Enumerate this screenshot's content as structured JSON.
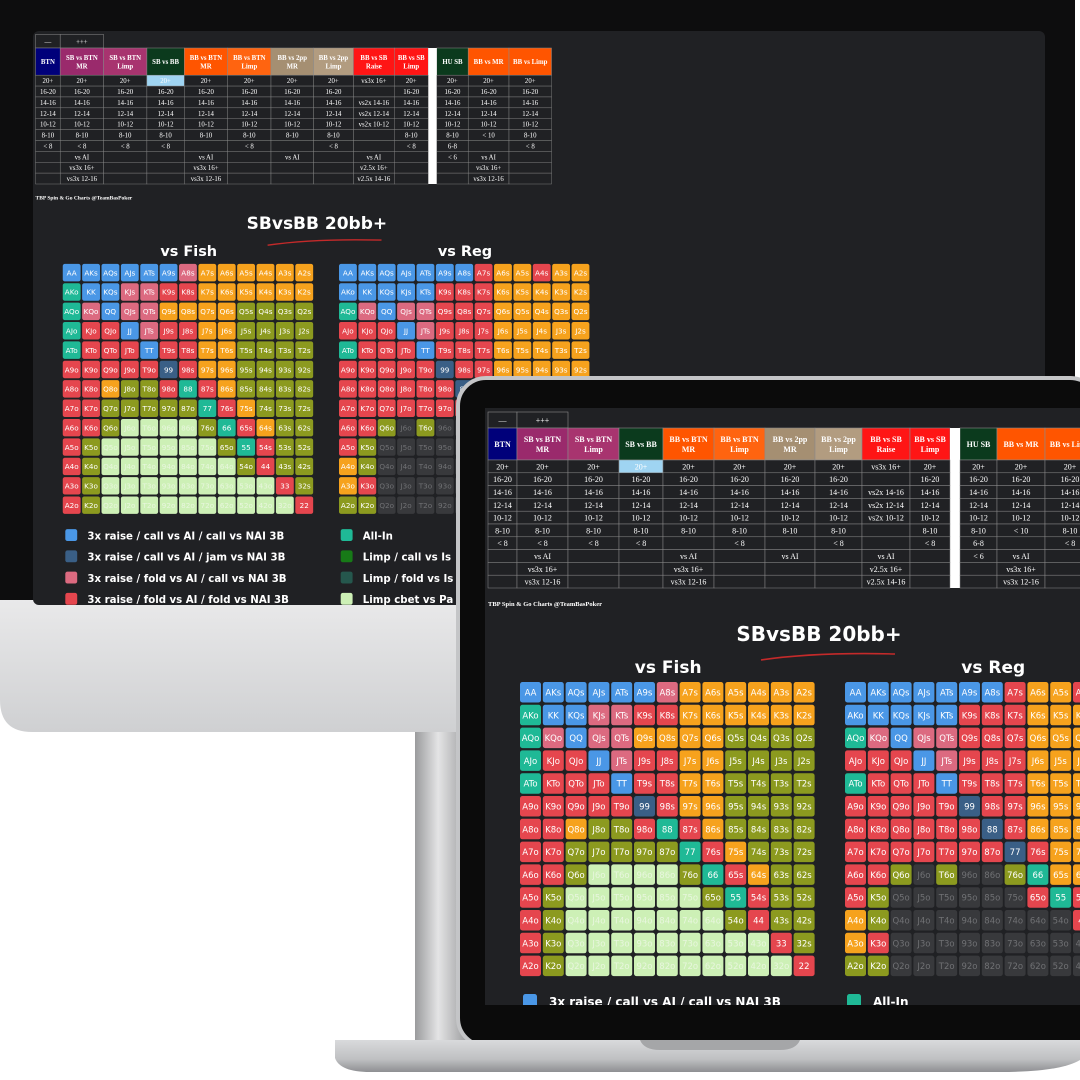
{
  "table": {
    "top_labels": [
      "—",
      "+++"
    ],
    "columns": [
      {
        "lines": [
          "BTN"
        ],
        "color": "#00007a"
      },
      {
        "lines": [
          "SB vs BTN",
          "MR"
        ],
        "color": "#9a2a6c"
      },
      {
        "lines": [
          "SB vs BTN",
          "Limp"
        ],
        "color": "#a8346f"
      },
      {
        "lines": [
          "SB vs BB"
        ],
        "color": "#0b3a1d"
      },
      {
        "lines": [
          "BB vs BTN",
          "MR"
        ],
        "color": "#ff5500"
      },
      {
        "lines": [
          "BB vs BTN",
          "Limp"
        ],
        "color": "#ff6410"
      },
      {
        "lines": [
          "BB vs 2pp",
          "MR"
        ],
        "color": "#a58f72"
      },
      {
        "lines": [
          "BB vs 2pp",
          "Limp"
        ],
        "color": "#b29c80"
      },
      {
        "lines": [
          "BB vs SB",
          "Raise"
        ],
        "color": "#ff1515"
      },
      {
        "lines": [
          "BB vs SB",
          "Limp"
        ],
        "color": "#ff1515"
      },
      {
        "lines": [
          "HU SB"
        ],
        "color": "#0b3a1d"
      },
      {
        "lines": [
          "BB vs MR"
        ],
        "color": "#ff5500"
      },
      {
        "lines": [
          "BB vs Limp"
        ],
        "color": "#ff5500"
      }
    ],
    "rows": [
      [
        "20+",
        "20+",
        "20+",
        "20+",
        "20+",
        "20+",
        "20+",
        "20+",
        "vs3x 16+",
        "20+",
        "20+",
        "20+",
        "20+"
      ],
      [
        "16-20",
        "16-20",
        "16-20",
        "16-20",
        "16-20",
        "16-20",
        "16-20",
        "16-20",
        null,
        "16-20",
        "16-20",
        "16-20",
        "16-20"
      ],
      [
        "14-16",
        "14-16",
        "14-16",
        "14-16",
        "14-16",
        "14-16",
        "14-16",
        "14-16",
        "vs2x 14-16",
        "14-16",
        "14-16",
        "14-16",
        "14-16"
      ],
      [
        "12-14",
        "12-14",
        "12-14",
        "12-14",
        "12-14",
        "12-14",
        "12-14",
        "12-14",
        "vs2x 12-14",
        "12-14",
        "12-14",
        "12-14",
        "12-14"
      ],
      [
        "10-12",
        "10-12",
        "10-12",
        "10-12",
        "10-12",
        "10-12",
        "10-12",
        "10-12",
        "vs2x 10-12",
        "10-12",
        "10-12",
        "10-12",
        "10-12"
      ],
      [
        "8-10",
        "8-10",
        "8-10",
        "8-10",
        "8-10",
        "8-10",
        "8-10",
        "8-10",
        null,
        "8-10",
        "8-10",
        "< 10",
        "8-10"
      ],
      [
        "< 8",
        "< 8",
        "< 8",
        "< 8",
        null,
        "< 8",
        null,
        "< 8",
        null,
        "< 8",
        "6-8",
        null,
        "< 8"
      ],
      [
        null,
        "vs AI",
        null,
        null,
        "vs AI",
        null,
        "vs AI",
        null,
        "vs AI",
        null,
        "< 6",
        "vs AI",
        null
      ],
      [
        null,
        "vs3x 16+",
        null,
        null,
        "vs3x 16+",
        null,
        null,
        null,
        "v2.5x 16+",
        null,
        null,
        "vs3x 16+",
        null
      ],
      [
        null,
        "vs3x 12-16",
        null,
        null,
        "vs3x 12-16",
        null,
        null,
        null,
        "v2.5x 14-16",
        null,
        null,
        "vs3x 12-16",
        null
      ]
    ],
    "highlight_color": "#9fd4f2"
  },
  "credit": "TBP Spin & Go Charts @TeamBasPoker",
  "title": "SBvsBB 20bb+",
  "hands": [
    [
      "AA",
      "AKs",
      "AQs",
      "AJs",
      "ATs",
      "A9s",
      "A8s",
      "A7s",
      "A6s",
      "A5s",
      "A4s",
      "A3s",
      "A2s"
    ],
    [
      "AKo",
      "KK",
      "KQs",
      "KJs",
      "KTs",
      "K9s",
      "K8s",
      "K7s",
      "K6s",
      "K5s",
      "K4s",
      "K3s",
      "K2s"
    ],
    [
      "AQo",
      "KQo",
      "QQ",
      "QJs",
      "QTs",
      "Q9s",
      "Q8s",
      "Q7s",
      "Q6s",
      "Q5s",
      "Q4s",
      "Q3s",
      "Q2s"
    ],
    [
      "AJo",
      "KJo",
      "QJo",
      "JJ",
      "JTs",
      "J9s",
      "J8s",
      "J7s",
      "J6s",
      "J5s",
      "J4s",
      "J3s",
      "J2s"
    ],
    [
      "ATo",
      "KTo",
      "QTo",
      "JTo",
      "TT",
      "T9s",
      "T8s",
      "T7s",
      "T6s",
      "T5s",
      "T4s",
      "T3s",
      "T2s"
    ],
    [
      "A9o",
      "K9o",
      "Q9o",
      "J9o",
      "T9o",
      "99",
      "98s",
      "97s",
      "96s",
      "95s",
      "94s",
      "93s",
      "92s"
    ],
    [
      "A8o",
      "K8o",
      "Q8o",
      "J8o",
      "T8o",
      "98o",
      "88",
      "87s",
      "86s",
      "85s",
      "84s",
      "83s",
      "82s"
    ],
    [
      "A7o",
      "K7o",
      "Q7o",
      "J7o",
      "T7o",
      "97o",
      "87o",
      "77",
      "76s",
      "75s",
      "74s",
      "73s",
      "72s"
    ],
    [
      "A6o",
      "K6o",
      "Q6o",
      "J6o",
      "T6o",
      "96o",
      "86o",
      "76o",
      "66",
      "65s",
      "64s",
      "63s",
      "62s"
    ],
    [
      "A5o",
      "K5o",
      "Q5o",
      "J5o",
      "T5o",
      "95o",
      "85o",
      "75o",
      "65o",
      "55",
      "54s",
      "53s",
      "52s"
    ],
    [
      "A4o",
      "K4o",
      "Q4o",
      "J4o",
      "T4o",
      "94o",
      "84o",
      "74o",
      "64o",
      "54o",
      "44",
      "43s",
      "42s"
    ],
    [
      "A3o",
      "K3o",
      "Q3o",
      "J3o",
      "T3o",
      "93o",
      "83o",
      "73o",
      "63o",
      "53o",
      "43o",
      "33",
      "32s"
    ],
    [
      "A2o",
      "K2o",
      "Q2o",
      "J2o",
      "T2o",
      "92o",
      "82o",
      "72o",
      "62o",
      "52o",
      "42o",
      "32o",
      "22"
    ]
  ],
  "palette": {
    "A": "#4a97e6",
    "B": "#3a5f86",
    "C": "#dc6a80",
    "D": "#e5464e",
    "E": "#1fb996",
    "F": "#177a17",
    "G": "#25574d",
    "H": "#cdf0b6",
    "O": "#f6a21d",
    "V": "#8c9a1f",
    "X": "#38393c"
  },
  "grids": [
    {
      "title": "vs Fish",
      "cells": [
        "AAAAAACOOOOOO",
        "EAACCDDOOOOOO",
        "ECACCOOOOVVVV",
        "EDDACDDOOVVVV",
        "EDDDADDOOVVVV",
        "DDDDDBDOOVVVV",
        "DDOVVDEDOVVVV",
        "DDVVVVVEDOVVV",
        "DDVHHHHVEDOVV",
        "DVHHHHHHVEDVV",
        "DVHHHHHHHVDVV",
        "DVHHHHHHHHHDV",
        "DVHHHHHHHHHHD"
      ]
    },
    {
      "title": "vs Reg",
      "cells": [
        "AAAAAAADOODOO",
        "AAAAADDDOOOOO",
        "ECACCDDDOOOOO",
        "DDDACDDDOOOOO",
        "EDDDADDDOOOOO",
        "DDDDDBDDOOOOO",
        "DDDDDDBDOOOOO",
        "DDDDDDDBDOOOO",
        "DDVXVXXVEOOOO",
        "DVXXXXXXDEDOO",
        "OVXXXXXXXXDDO",
        "ODXXXXXXXXXDO",
        "VVXXXXXXXXXXD"
      ]
    }
  ],
  "legend": [
    {
      "label": "3x raise / call vs AI / call vs NAI 3B",
      "color": "#4a97e6"
    },
    {
      "label": "3x raise / call vs AI / jam vs NAI 3B",
      "color": "#3a5f86"
    },
    {
      "label": "3x raise / fold vs AI / call vs NAI 3B",
      "color": "#dc6a80"
    },
    {
      "label": "3x raise / fold vs AI / fold vs NAI 3B",
      "color": "#e5464e"
    },
    {
      "label": "All-In",
      "color": "#1fb996"
    },
    {
      "label": "Limp / call vs Is",
      "color": "#177a17"
    },
    {
      "label": "Limp / fold vs Is",
      "color": "#25574d"
    },
    {
      "label": "Limp cbet vs Pa",
      "color": "#cdf0b6"
    }
  ]
}
